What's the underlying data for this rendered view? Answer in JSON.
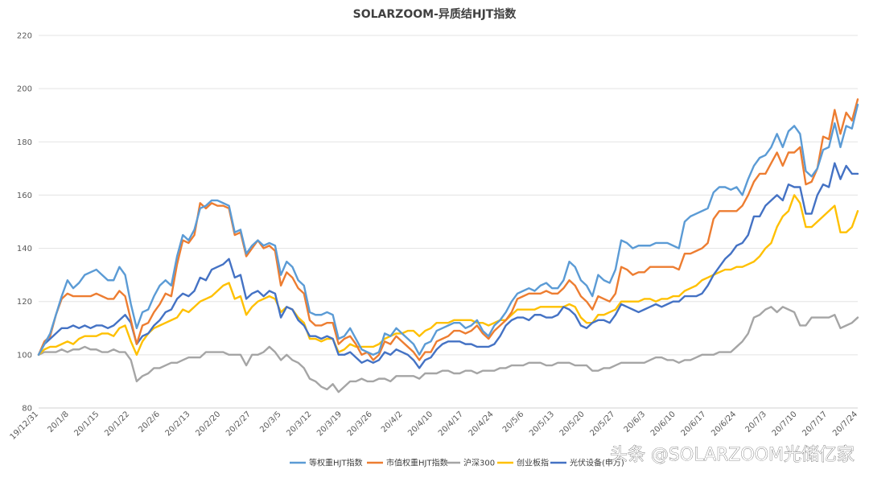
{
  "chart_data": {
    "type": "line",
    "title": "SOLARZOOM-异质结HJT指数",
    "ylim": [
      80,
      220
    ],
    "yticks": [
      80,
      100,
      120,
      140,
      160,
      180,
      200,
      220
    ],
    "grid": true,
    "legend_position": "bottom",
    "x_tick_labels": [
      "19/12/31",
      "20/1/8",
      "20/1/15",
      "20/1/22",
      "20/2/6",
      "20/2/13",
      "20/2/20",
      "20/2/27",
      "20/3/5",
      "20/3/12",
      "20/3/19",
      "20/3/26",
      "20/4/2",
      "20/4/10",
      "20/4/17",
      "20/4/24",
      "20/5/6",
      "20/5/13",
      "20/5/20",
      "20/5/27",
      "20/6/3",
      "20/6/10",
      "20/6/17",
      "20/6/24",
      "20/7/3",
      "20/7/10",
      "20/7/17",
      "20/7/24"
    ],
    "series": [
      {
        "name": "等权重HJT指数",
        "color": "#5B9BD5",
        "values": [
          100,
          104,
          108,
          115,
          122,
          128,
          125,
          127,
          130,
          131,
          132,
          130,
          128,
          128,
          133,
          130,
          119,
          110,
          116,
          117,
          122,
          126,
          128,
          126,
          137,
          145,
          143,
          147,
          155,
          156,
          158,
          158,
          157,
          156,
          146,
          147,
          138,
          141,
          143,
          141,
          142,
          141,
          130,
          135,
          133,
          128,
          126,
          116,
          115,
          115,
          116,
          115,
          106,
          107,
          110,
          106,
          102,
          101,
          100,
          101,
          108,
          107,
          110,
          108,
          106,
          104,
          100,
          104,
          105,
          109,
          110,
          111,
          112,
          112,
          110,
          111,
          113,
          109,
          107,
          111,
          113,
          116,
          120,
          123,
          124,
          125,
          124,
          126,
          127,
          125,
          125,
          128,
          135,
          133,
          128,
          126,
          122,
          130,
          128,
          127,
          132,
          143,
          142,
          140,
          141,
          141,
          141,
          142,
          142,
          142,
          141,
          140,
          150,
          152,
          153,
          154,
          155,
          161,
          163,
          163,
          162,
          163,
          160,
          166,
          171,
          174,
          175,
          178,
          183,
          178,
          184,
          186,
          183,
          169,
          167,
          170,
          177,
          178,
          187,
          178,
          186,
          185,
          194
        ]
      },
      {
        "name": "市值权重HJT指数",
        "color": "#ED7D31",
        "values": [
          100,
          105,
          107,
          115,
          121,
          123,
          122,
          122,
          122,
          122,
          123,
          122,
          121,
          121,
          124,
          122,
          113,
          104,
          111,
          112,
          116,
          119,
          123,
          122,
          134,
          143,
          142,
          145,
          157,
          155,
          157,
          156,
          156,
          155,
          145,
          146,
          137,
          140,
          143,
          140,
          141,
          139,
          126,
          131,
          129,
          125,
          123,
          113,
          111,
          111,
          112,
          112,
          104,
          106,
          107,
          104,
          100,
          101,
          98,
          100,
          105,
          104,
          107,
          105,
          103,
          101,
          98,
          101,
          101,
          105,
          106,
          107,
          109,
          109,
          108,
          109,
          111,
          108,
          106,
          109,
          111,
          113,
          116,
          121,
          122,
          123,
          123,
          123,
          124,
          123,
          123,
          125,
          128,
          126,
          122,
          120,
          117,
          122,
          121,
          120,
          123,
          133,
          132,
          130,
          131,
          131,
          133,
          133,
          133,
          133,
          133,
          132,
          138,
          138,
          139,
          140,
          142,
          151,
          154,
          154,
          154,
          154,
          156,
          160,
          165,
          168,
          168,
          172,
          176,
          171,
          176,
          176,
          178,
          164,
          165,
          170,
          182,
          181,
          192,
          183,
          191,
          188,
          196
        ]
      },
      {
        "name": "沪深300",
        "color": "#A5A5A5",
        "values": [
          100,
          101,
          101,
          101,
          102,
          101,
          102,
          102,
          103,
          102,
          102,
          101,
          101,
          102,
          101,
          101,
          98,
          90,
          92,
          93,
          95,
          95,
          96,
          97,
          97,
          98,
          99,
          99,
          99,
          101,
          101,
          101,
          101,
          100,
          100,
          100,
          96,
          100,
          100,
          101,
          103,
          101,
          98,
          100,
          98,
          97,
          95,
          91,
          90,
          88,
          87,
          89,
          86,
          88,
          90,
          90,
          91,
          90,
          90,
          91,
          91,
          90,
          92,
          92,
          92,
          92,
          91,
          93,
          93,
          93,
          94,
          94,
          93,
          93,
          94,
          94,
          93,
          94,
          94,
          94,
          95,
          95,
          96,
          96,
          96,
          97,
          97,
          97,
          96,
          96,
          97,
          97,
          97,
          96,
          96,
          96,
          94,
          94,
          95,
          95,
          96,
          97,
          97,
          97,
          97,
          97,
          98,
          99,
          99,
          98,
          98,
          97,
          98,
          98,
          99,
          100,
          100,
          100,
          101,
          101,
          101,
          103,
          105,
          108,
          114,
          115,
          117,
          118,
          116,
          118,
          117,
          116,
          111,
          111,
          114,
          114,
          114,
          114,
          115,
          110,
          111,
          112,
          114
        ]
      },
      {
        "name": "创业板指",
        "color": "#FFC000",
        "values": [
          100,
          102,
          103,
          103,
          104,
          105,
          104,
          106,
          107,
          107,
          107,
          108,
          108,
          107,
          110,
          111,
          105,
          100,
          105,
          108,
          110,
          111,
          112,
          113,
          114,
          117,
          116,
          118,
          120,
          121,
          122,
          124,
          126,
          127,
          121,
          122,
          115,
          118,
          120,
          121,
          122,
          121,
          116,
          118,
          117,
          114,
          112,
          106,
          106,
          105,
          106,
          106,
          101,
          102,
          104,
          103,
          103,
          103,
          103,
          104,
          106,
          107,
          108,
          108,
          109,
          109,
          107,
          109,
          110,
          112,
          112,
          112,
          113,
          113,
          113,
          113,
          112,
          112,
          111,
          112,
          113,
          113,
          115,
          117,
          117,
          117,
          117,
          118,
          118,
          118,
          118,
          118,
          119,
          118,
          114,
          112,
          112,
          115,
          115,
          116,
          117,
          120,
          120,
          120,
          120,
          121,
          121,
          120,
          121,
          121,
          122,
          122,
          124,
          125,
          126,
          128,
          129,
          130,
          131,
          132,
          132,
          133,
          133,
          134,
          135,
          137,
          140,
          142,
          148,
          152,
          154,
          160,
          157,
          148,
          148,
          150,
          152,
          154,
          156,
          146,
          146,
          148,
          154
        ]
      },
      {
        "name": "光伏设备(申万)",
        "color": "#4472C4",
        "values": [
          100,
          104,
          106,
          108,
          110,
          110,
          111,
          110,
          111,
          110,
          111,
          111,
          110,
          111,
          113,
          115,
          112,
          104,
          107,
          108,
          111,
          113,
          116,
          117,
          121,
          123,
          122,
          124,
          129,
          128,
          132,
          133,
          134,
          136,
          129,
          130,
          121,
          123,
          124,
          122,
          124,
          123,
          114,
          118,
          117,
          113,
          111,
          107,
          107,
          106,
          107,
          106,
          100,
          100,
          101,
          99,
          97,
          98,
          97,
          98,
          101,
          100,
          102,
          101,
          100,
          98,
          95,
          98,
          99,
          102,
          104,
          105,
          105,
          105,
          104,
          104,
          103,
          103,
          103,
          104,
          107,
          111,
          113,
          114,
          114,
          113,
          115,
          115,
          114,
          114,
          115,
          118,
          117,
          115,
          111,
          110,
          112,
          113,
          113,
          112,
          115,
          119,
          118,
          117,
          116,
          117,
          118,
          119,
          118,
          119,
          120,
          120,
          122,
          122,
          122,
          123,
          126,
          130,
          133,
          136,
          138,
          141,
          142,
          145,
          152,
          152,
          156,
          158,
          160,
          158,
          164,
          163,
          163,
          153,
          153,
          160,
          164,
          163,
          172,
          166,
          171,
          168,
          168
        ]
      }
    ]
  },
  "watermark": "头条 @SOLARZOOM光储亿家"
}
